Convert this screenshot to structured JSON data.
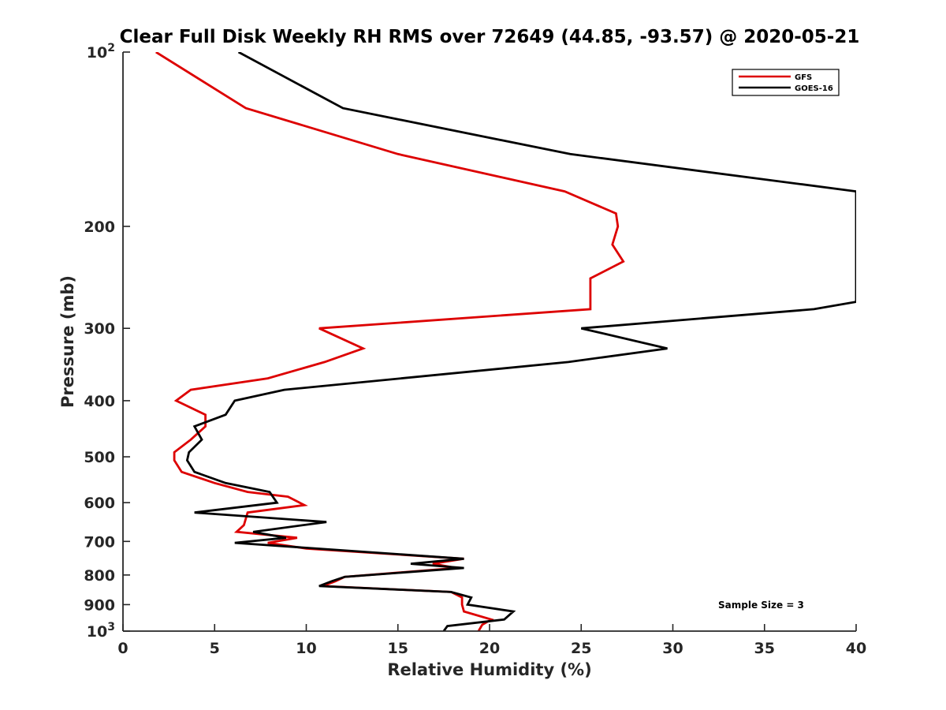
{
  "chart_data": {
    "type": "line",
    "title": "Clear Full Disk Weekly RH RMS over 72649 (44.85, -93.57) @ 2020-05-21",
    "xlabel": "Relative Humidity (%)",
    "ylabel": "Pressure (mb)",
    "xlim": [
      0,
      40
    ],
    "ylim": [
      100,
      1000
    ],
    "y_scale": "log",
    "y_reversed": true,
    "x_ticks": [
      "0",
      "5",
      "10",
      "15",
      "20",
      "25",
      "30",
      "35",
      "40"
    ],
    "y_ticks": [
      {
        "value": 100,
        "label": "10",
        "sup": "2"
      },
      {
        "value": 200,
        "label": "200",
        "sup": ""
      },
      {
        "value": 300,
        "label": "300",
        "sup": ""
      },
      {
        "value": 400,
        "label": "400",
        "sup": ""
      },
      {
        "value": 500,
        "label": "500",
        "sup": ""
      },
      {
        "value": 600,
        "label": "600",
        "sup": ""
      },
      {
        "value": 700,
        "label": "700",
        "sup": ""
      },
      {
        "value": 800,
        "label": "800",
        "sup": ""
      },
      {
        "value": 900,
        "label": "900",
        "sup": ""
      },
      {
        "value": 1000,
        "label": "10",
        "sup": "3"
      }
    ],
    "legend_position": "top-right",
    "annotation": "Sample Size = 3",
    "series": [
      {
        "name": "GFS",
        "color": "#dd0000",
        "points": [
          [
            1.8,
            100
          ],
          [
            6.7,
            125
          ],
          [
            15.0,
            150
          ],
          [
            24.1,
            174
          ],
          [
            26.9,
            190
          ],
          [
            27.0,
            200
          ],
          [
            26.7,
            215
          ],
          [
            27.3,
            230
          ],
          [
            25.5,
            246
          ],
          [
            25.5,
            278
          ],
          [
            10.7,
            300
          ],
          [
            13.1,
            325
          ],
          [
            11.0,
            343
          ],
          [
            7.9,
            366
          ],
          [
            3.7,
            383
          ],
          [
            2.9,
            400
          ],
          [
            4.5,
            423
          ],
          [
            4.5,
            443
          ],
          [
            3.7,
            467
          ],
          [
            2.8,
            491
          ],
          [
            2.8,
            507
          ],
          [
            3.2,
            531
          ],
          [
            5.0,
            555
          ],
          [
            6.8,
            575
          ],
          [
            9.0,
            586
          ],
          [
            9.9,
            606
          ],
          [
            6.8,
            624
          ],
          [
            6.6,
            656
          ],
          [
            6.2,
            674
          ],
          [
            9.5,
            690
          ],
          [
            7.9,
            704
          ],
          [
            10.0,
            720
          ],
          [
            18.6,
            750
          ],
          [
            16.9,
            765
          ],
          [
            18.2,
            778
          ],
          [
            12.1,
            806
          ],
          [
            11.6,
            820
          ],
          [
            10.9,
            836
          ],
          [
            17.9,
            856
          ],
          [
            18.5,
            875
          ],
          [
            18.5,
            900
          ],
          [
            18.6,
            925
          ],
          [
            20.1,
            955
          ],
          [
            19.6,
            975
          ],
          [
            19.4,
            1000
          ]
        ]
      },
      {
        "name": "GOES-16",
        "color": "#000000",
        "points": [
          [
            6.3,
            100
          ],
          [
            12.0,
            125
          ],
          [
            24.4,
            150
          ],
          [
            40.0,
            174
          ],
          [
            40.0,
            270
          ],
          [
            37.7,
            278
          ],
          [
            25.0,
            300
          ],
          [
            29.7,
            325
          ],
          [
            24.3,
            343
          ],
          [
            8.8,
            383
          ],
          [
            6.1,
            400
          ],
          [
            5.6,
            423
          ],
          [
            3.9,
            443
          ],
          [
            4.3,
            467
          ],
          [
            3.6,
            491
          ],
          [
            3.5,
            507
          ],
          [
            3.9,
            531
          ],
          [
            5.6,
            555
          ],
          [
            8.0,
            575
          ],
          [
            8.4,
            600
          ],
          [
            3.9,
            624
          ],
          [
            11.1,
            648
          ],
          [
            7.1,
            674
          ],
          [
            8.9,
            690
          ],
          [
            6.1,
            704
          ],
          [
            18.6,
            750
          ],
          [
            15.7,
            765
          ],
          [
            18.6,
            778
          ],
          [
            12.1,
            806
          ],
          [
            11.4,
            820
          ],
          [
            10.7,
            836
          ],
          [
            17.9,
            856
          ],
          [
            19.0,
            875
          ],
          [
            18.8,
            900
          ],
          [
            21.3,
            925
          ],
          [
            20.8,
            955
          ],
          [
            17.7,
            980
          ],
          [
            17.5,
            1000
          ]
        ]
      }
    ]
  }
}
